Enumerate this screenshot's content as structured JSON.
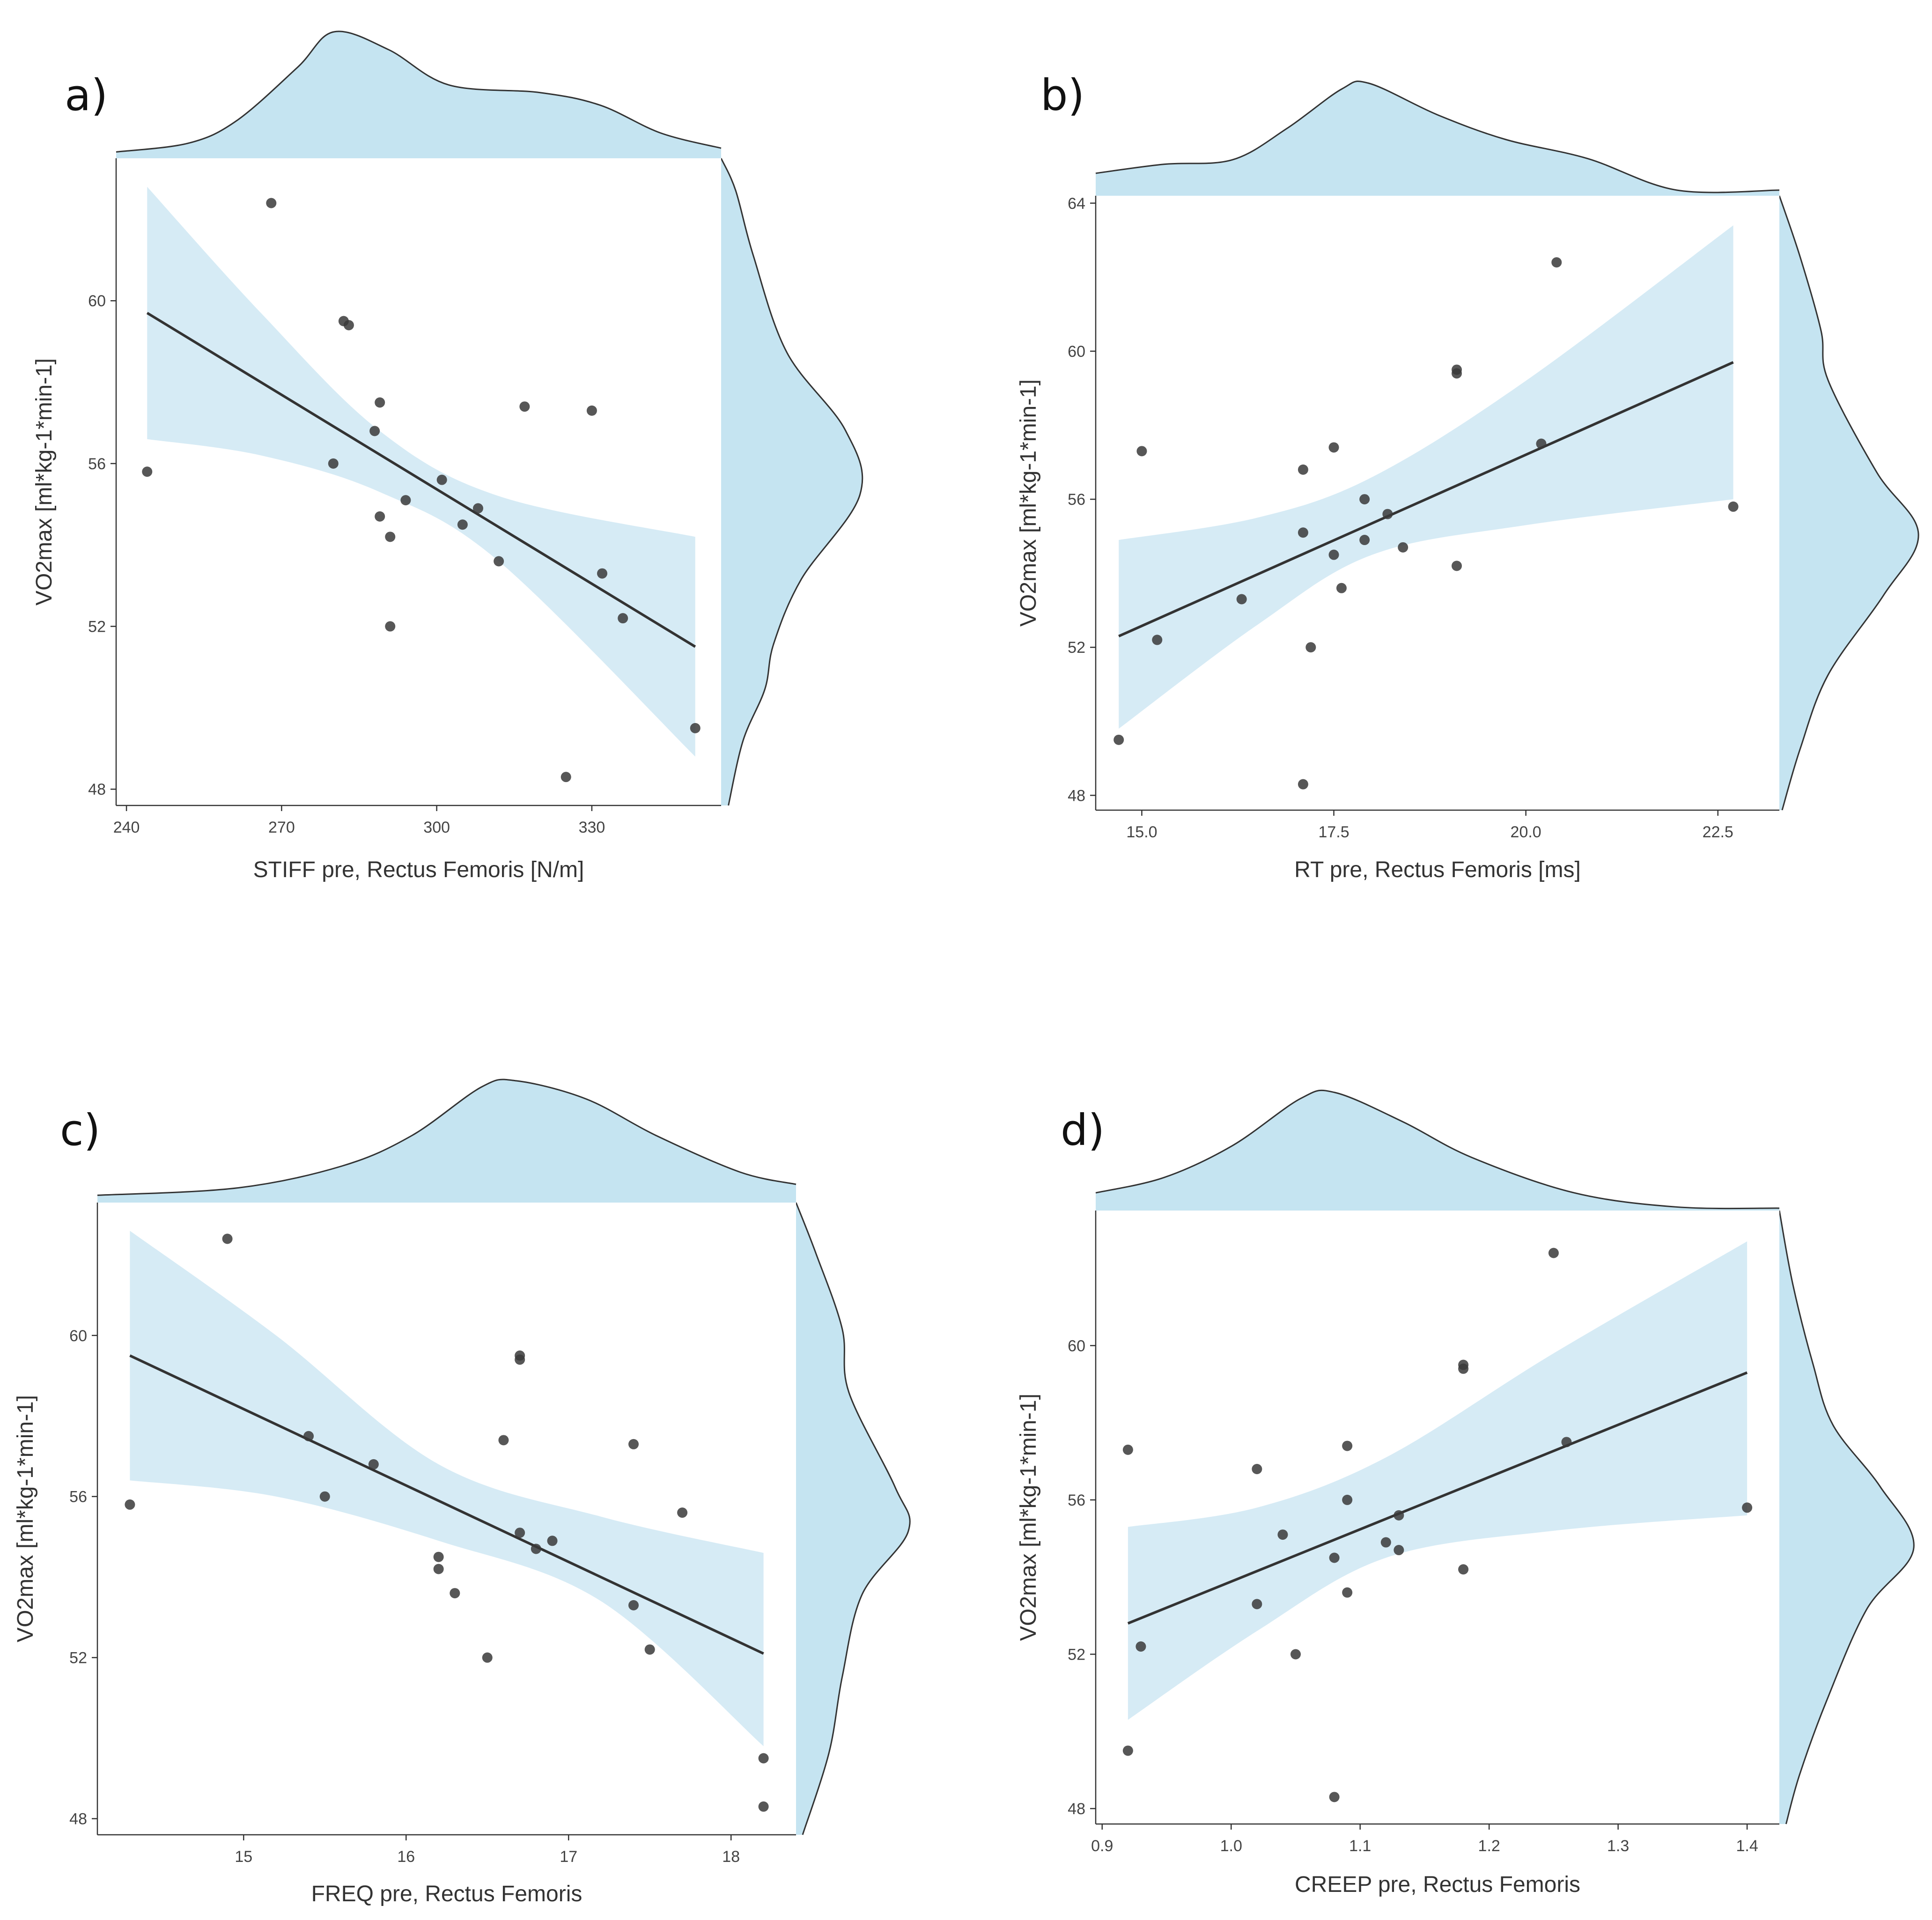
{
  "colors": {
    "band": "#cfe8f3",
    "density_fill": "#c5e4f1",
    "point": "#3a3a3a",
    "line": "#333333",
    "outline": "#333333"
  },
  "chart_data": [
    {
      "type": "scatter",
      "panel": "a)",
      "xlabel": "STIFF pre, Rectus Femoris [N/m]",
      "ylabel": "VO2max [ml*kg-1*min-1]",
      "xlim": [
        238,
        355
      ],
      "ylim": [
        47.6,
        63.5
      ],
      "xticks": [
        240,
        270,
        300,
        330
      ],
      "yticks": [
        48,
        52,
        56,
        60
      ],
      "points": [
        [
          244,
          55.8
        ],
        [
          268,
          62.4
        ],
        [
          282,
          59.5
        ],
        [
          283,
          59.4
        ],
        [
          289,
          57.5
        ],
        [
          288,
          56.8
        ],
        [
          280,
          56.0
        ],
        [
          289,
          54.7
        ],
        [
          291,
          54.2
        ],
        [
          291,
          52.0
        ],
        [
          294,
          55.1
        ],
        [
          301,
          55.6
        ],
        [
          305,
          54.5
        ],
        [
          308,
          54.9
        ],
        [
          312,
          53.6
        ],
        [
          317,
          57.4
        ],
        [
          325,
          48.3
        ],
        [
          330,
          57.3
        ],
        [
          332,
          53.3
        ],
        [
          336,
          52.2
        ],
        [
          350,
          49.5
        ]
      ],
      "fit": {
        "x": [
          244,
          350
        ],
        "y": [
          59.7,
          51.5
        ]
      },
      "band": {
        "x": [
          244,
          266,
          289,
          312,
          350
        ],
        "lower": [
          56.6,
          56.2,
          55.3,
          53.6,
          48.8
        ],
        "upper": [
          62.8,
          59.7,
          56.8,
          55.2,
          54.2
        ]
      },
      "x_density": [
        [
          0,
          0.05
        ],
        [
          0.12,
          0.12
        ],
        [
          0.2,
          0.3
        ],
        [
          0.3,
          0.72
        ],
        [
          0.36,
          1.0
        ],
        [
          0.45,
          0.86
        ],
        [
          0.55,
          0.58
        ],
        [
          0.7,
          0.52
        ],
        [
          0.8,
          0.42
        ],
        [
          0.9,
          0.2
        ],
        [
          1,
          0.08
        ]
      ],
      "y_density": [
        [
          0,
          0.0
        ],
        [
          0.05,
          0.1
        ],
        [
          0.15,
          0.22
        ],
        [
          0.3,
          0.45
        ],
        [
          0.42,
          0.85
        ],
        [
          0.52,
          0.95
        ],
        [
          0.65,
          0.55
        ],
        [
          0.75,
          0.36
        ],
        [
          0.82,
          0.3
        ],
        [
          0.9,
          0.15
        ],
        [
          1,
          0.05
        ]
      ]
    },
    {
      "type": "scatter",
      "panel": "b)",
      "xlabel": "RT pre, Rectus Femoris [ms]",
      "ylabel": "VO2max [ml*kg-1*min-1]",
      "xlim": [
        14.4,
        23.3
      ],
      "ylim": [
        47.6,
        64.2
      ],
      "xticks": [
        15.0,
        17.5,
        20.0,
        22.5
      ],
      "yticks": [
        48,
        52,
        56,
        60,
        64
      ],
      "points": [
        [
          14.7,
          49.5
        ],
        [
          15.0,
          57.3
        ],
        [
          15.2,
          52.2
        ],
        [
          16.3,
          53.3
        ],
        [
          17.1,
          56.8
        ],
        [
          17.1,
          55.1
        ],
        [
          17.1,
          48.3
        ],
        [
          17.2,
          52.0
        ],
        [
          17.5,
          57.4
        ],
        [
          17.5,
          54.5
        ],
        [
          17.6,
          53.6
        ],
        [
          17.9,
          56.0
        ],
        [
          17.9,
          54.9
        ],
        [
          18.2,
          55.6
        ],
        [
          18.4,
          54.7
        ],
        [
          19.1,
          59.5
        ],
        [
          19.1,
          59.4
        ],
        [
          19.1,
          54.2
        ],
        [
          20.2,
          57.5
        ],
        [
          20.4,
          62.4
        ],
        [
          22.7,
          55.8
        ]
      ],
      "fit": {
        "x": [
          14.7,
          22.7
        ],
        "y": [
          52.3,
          59.7
        ]
      },
      "band": {
        "x": [
          14.7,
          16.5,
          18.0,
          20.0,
          22.7
        ],
        "lower": [
          49.8,
          52.6,
          54.5,
          55.3,
          56.0
        ],
        "upper": [
          54.9,
          55.5,
          56.6,
          59.2,
          63.4
        ]
      },
      "x_density": [
        [
          0,
          0.2
        ],
        [
          0.1,
          0.28
        ],
        [
          0.2,
          0.32
        ],
        [
          0.28,
          0.6
        ],
        [
          0.36,
          0.95
        ],
        [
          0.4,
          1.0
        ],
        [
          0.5,
          0.72
        ],
        [
          0.6,
          0.5
        ],
        [
          0.72,
          0.33
        ],
        [
          0.85,
          0.05
        ],
        [
          1,
          0.05
        ]
      ],
      "y_density": [
        [
          0,
          0.0
        ],
        [
          0.1,
          0.15
        ],
        [
          0.22,
          0.3
        ],
        [
          0.3,
          0.35
        ],
        [
          0.45,
          0.7
        ],
        [
          0.55,
          1.0
        ],
        [
          0.65,
          0.75
        ],
        [
          0.78,
          0.35
        ],
        [
          0.9,
          0.15
        ],
        [
          1,
          0.02
        ]
      ]
    },
    {
      "type": "scatter",
      "panel": "c)",
      "xlabel": "FREQ pre, Rectus Femoris",
      "ylabel": "VO2max [ml*kg-1*min-1]",
      "xlim": [
        14.1,
        18.4
      ],
      "ylim": [
        47.6,
        63.3
      ],
      "xticks": [
        15,
        16,
        17,
        18
      ],
      "yticks": [
        48,
        52,
        56,
        60
      ],
      "points": [
        [
          14.3,
          55.8
        ],
        [
          14.9,
          62.4
        ],
        [
          15.4,
          57.5
        ],
        [
          15.5,
          56.0
        ],
        [
          15.8,
          56.8
        ],
        [
          16.2,
          54.5
        ],
        [
          16.2,
          54.2
        ],
        [
          16.3,
          53.6
        ],
        [
          16.5,
          52.0
        ],
        [
          16.6,
          57.4
        ],
        [
          16.7,
          59.5
        ],
        [
          16.7,
          59.4
        ],
        [
          16.7,
          55.1
        ],
        [
          16.8,
          54.7
        ],
        [
          16.9,
          54.9
        ],
        [
          17.4,
          57.3
        ],
        [
          17.4,
          53.3
        ],
        [
          17.5,
          52.2
        ],
        [
          17.7,
          55.6
        ],
        [
          18.2,
          49.5
        ],
        [
          18.2,
          48.3
        ]
      ],
      "fit": {
        "x": [
          14.3,
          18.2
        ],
        "y": [
          59.5,
          52.1
        ]
      },
      "band": {
        "x": [
          14.3,
          15.2,
          16.2,
          17.2,
          18.2
        ],
        "lower": [
          56.4,
          56.0,
          54.9,
          53.4,
          49.8
        ],
        "upper": [
          62.6,
          60.0,
          56.8,
          55.5,
          54.6
        ]
      },
      "x_density": [
        [
          0,
          0.06
        ],
        [
          0.2,
          0.12
        ],
        [
          0.35,
          0.3
        ],
        [
          0.45,
          0.55
        ],
        [
          0.55,
          0.95
        ],
        [
          0.6,
          1.0
        ],
        [
          0.7,
          0.85
        ],
        [
          0.8,
          0.55
        ],
        [
          0.92,
          0.25
        ],
        [
          1,
          0.15
        ]
      ],
      "y_density": [
        [
          0,
          0.0
        ],
        [
          0.08,
          0.15
        ],
        [
          0.2,
          0.35
        ],
        [
          0.3,
          0.4
        ],
        [
          0.45,
          0.75
        ],
        [
          0.52,
          0.85
        ],
        [
          0.62,
          0.5
        ],
        [
          0.75,
          0.35
        ],
        [
          0.87,
          0.25
        ],
        [
          1,
          0.05
        ]
      ]
    },
    {
      "type": "scatter",
      "panel": "d)",
      "xlabel": "CREEP pre, Rectus Femoris",
      "ylabel": "VO2max [ml*kg-1*min-1]",
      "xlim": [
        0.895,
        1.425
      ],
      "ylim": [
        47.6,
        63.5
      ],
      "xticks": [
        0.9,
        1.0,
        1.1,
        1.2,
        1.3,
        1.4
      ],
      "yticks": [
        48,
        52,
        56,
        60
      ],
      "points": [
        [
          0.92,
          57.3
        ],
        [
          0.92,
          49.5
        ],
        [
          0.93,
          52.2
        ],
        [
          1.02,
          56.8
        ],
        [
          1.02,
          53.3
        ],
        [
          1.04,
          55.1
        ],
        [
          1.05,
          52.0
        ],
        [
          1.08,
          54.5
        ],
        [
          1.08,
          48.3
        ],
        [
          1.09,
          57.4
        ],
        [
          1.09,
          56.0
        ],
        [
          1.09,
          53.6
        ],
        [
          1.12,
          54.9
        ],
        [
          1.13,
          55.6
        ],
        [
          1.13,
          54.7
        ],
        [
          1.18,
          59.5
        ],
        [
          1.18,
          59.4
        ],
        [
          1.18,
          54.2
        ],
        [
          1.25,
          62.4
        ],
        [
          1.26,
          57.5
        ],
        [
          1.4,
          55.8
        ]
      ],
      "fit": {
        "x": [
          0.92,
          1.4
        ],
        "y": [
          52.8,
          59.3
        ]
      },
      "band": {
        "x": [
          0.92,
          1.02,
          1.12,
          1.25,
          1.4
        ],
        "lower": [
          50.3,
          52.6,
          54.5,
          55.2,
          55.6
        ],
        "upper": [
          55.3,
          55.8,
          57.1,
          59.8,
          62.7
        ]
      },
      "x_density": [
        [
          0,
          0.15
        ],
        [
          0.1,
          0.28
        ],
        [
          0.2,
          0.55
        ],
        [
          0.3,
          0.95
        ],
        [
          0.35,
          1.0
        ],
        [
          0.45,
          0.75
        ],
        [
          0.55,
          0.45
        ],
        [
          0.7,
          0.15
        ],
        [
          0.85,
          0.03
        ],
        [
          1,
          0.02
        ]
      ],
      "y_density": [
        [
          0,
          0.0
        ],
        [
          0.12,
          0.1
        ],
        [
          0.25,
          0.25
        ],
        [
          0.35,
          0.4
        ],
        [
          0.45,
          0.75
        ],
        [
          0.55,
          1.0
        ],
        [
          0.65,
          0.65
        ],
        [
          0.8,
          0.35
        ],
        [
          0.92,
          0.15
        ],
        [
          1,
          0.05
        ]
      ]
    }
  ]
}
